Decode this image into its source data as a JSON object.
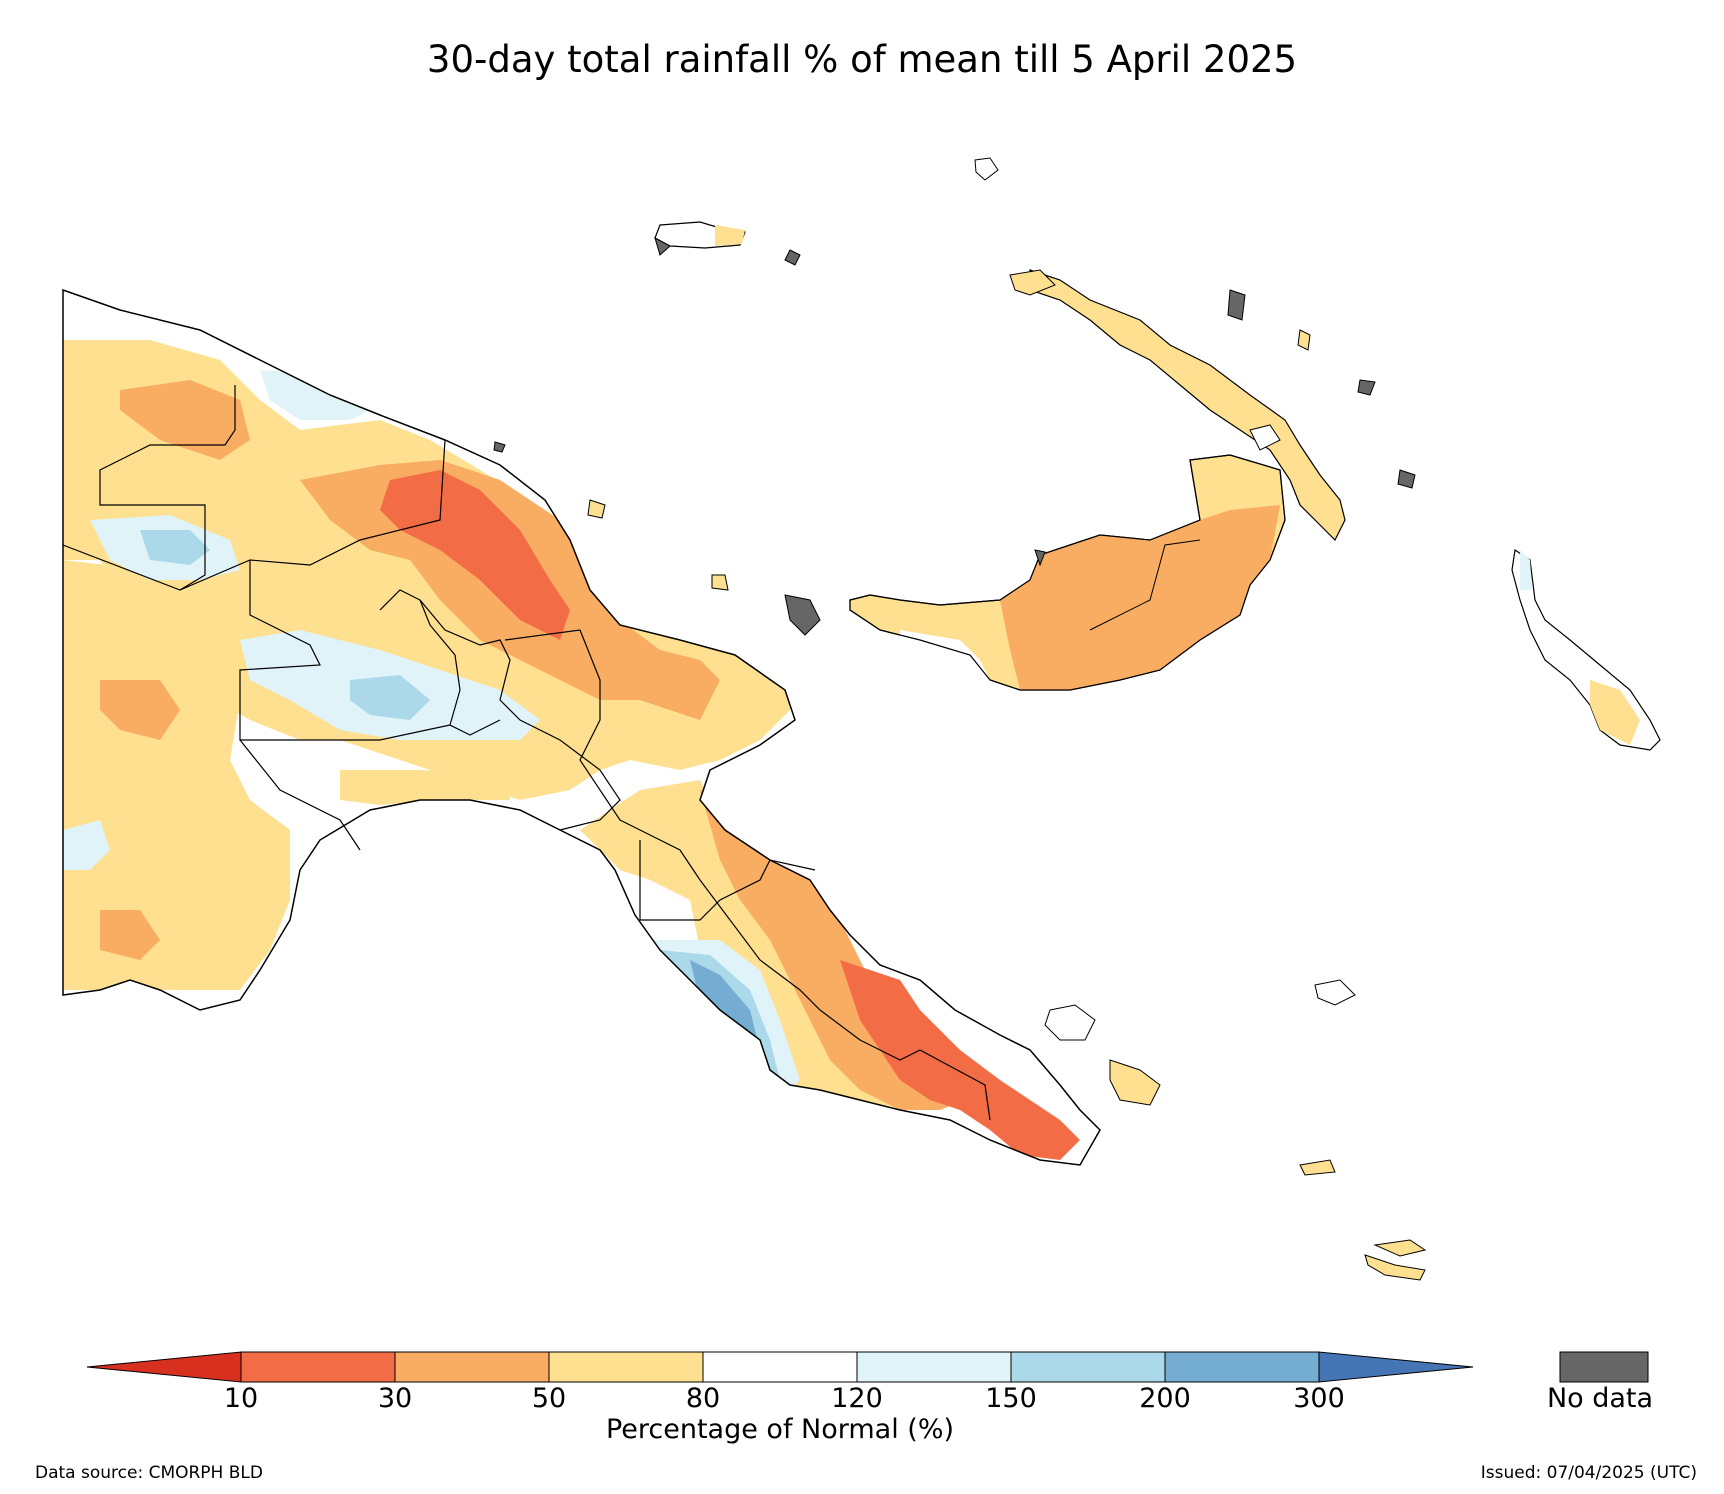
{
  "title": "30-day total rainfall % of mean till 5 April 2025",
  "legend": {
    "label": "Percentage of Normal (%)",
    "ticks": [
      "10",
      "30",
      "50",
      "80",
      "120",
      "150",
      "200",
      "300"
    ],
    "bins": [
      {
        "range": "<10",
        "color": "#d7301f"
      },
      {
        "range": "10-30",
        "color": "#f26c45"
      },
      {
        "range": "30-50",
        "color": "#f9ad63"
      },
      {
        "range": "50-80",
        "color": "#fee090"
      },
      {
        "range": "80-120",
        "color": "#ffffff"
      },
      {
        "range": "120-150",
        "color": "#e0f3f8"
      },
      {
        "range": "150-200",
        "color": "#abd9e9"
      },
      {
        "range": "200-300",
        "color": "#74add1"
      },
      {
        "range": ">300",
        "color": "#4575b4"
      }
    ],
    "nodata_label": "No data",
    "nodata_color": "#666666"
  },
  "footer": {
    "source": "Data source: CMORPH BLD",
    "issued": "Issued: 07/04/2025 (UTC)"
  }
}
